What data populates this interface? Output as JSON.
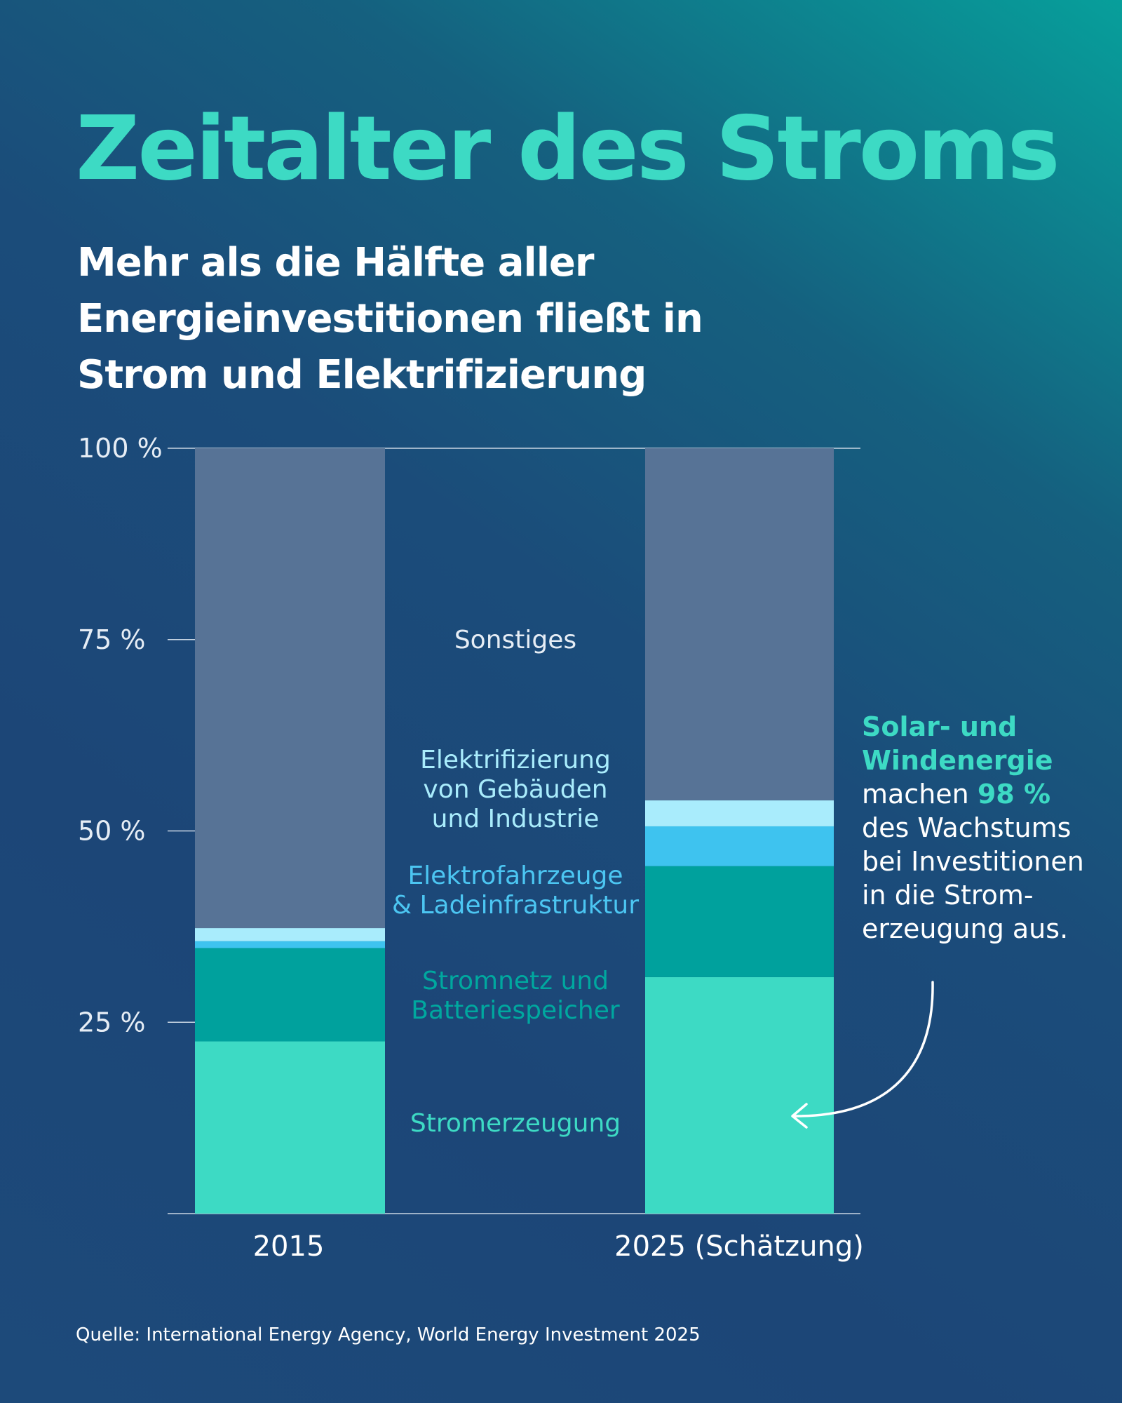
{
  "title": "Zeitalter des Stroms",
  "subtitle": [
    "Mehr als die Hälfte aller",
    "Energieinvestitionen fließt in",
    "Strom und Elektrifizierung"
  ],
  "annotation": {
    "highlight_lines": [
      "Solar- und",
      "Windenergie"
    ],
    "line3_prefix": "machen ",
    "line3_value": "98 %",
    "lines": [
      "des Wachstums",
      "bei Investitionen",
      "in die Strom-",
      "erzeugung aus."
    ]
  },
  "source": "Quelle: International Energy Agency, World Energy Investment 2025",
  "colors": {
    "background": "#1c4677",
    "accent": "#3ddac4"
  },
  "chart_data": {
    "type": "bar",
    "stacked": true,
    "categories": [
      "2015",
      "2025 (Schätzung)"
    ],
    "ylim": [
      0,
      100
    ],
    "yticks": [
      "25 %",
      "50 %",
      "75 %",
      "100 %"
    ],
    "ytick_values": [
      25,
      50,
      75,
      100
    ],
    "grid": false,
    "legend": "center labels between bars",
    "series": [
      {
        "name": "Stromerzeugung",
        "values": [
          22.5,
          30.9
        ],
        "color": "#3ddac4",
        "label_lines": [
          "Stromerzeugung"
        ]
      },
      {
        "name": "Stromnetz und Batteriespeicher",
        "values": [
          12.2,
          14.5
        ],
        "color": "#00a19d",
        "label_lines": [
          "Stromnetz und",
          "Batteriespeicher"
        ]
      },
      {
        "name": "Elektrofahrzeuge & Ladeinfrastruktur",
        "values": [
          0.9,
          5.2
        ],
        "color": "#3ec3ef",
        "label_lines": [
          "Elektrofahrzeuge",
          "& Ladeinfrastruktur"
        ]
      },
      {
        "name": "Elektrifizierung von Gebäuden und Industrie",
        "values": [
          1.7,
          3.4
        ],
        "color": "#a9ecfc",
        "label_lines": [
          "Elektrifizierung",
          "von Gebäuden",
          "und Industrie"
        ]
      },
      {
        "name": "Sonstiges",
        "values": [
          62.7,
          46.0
        ],
        "color": "#577396",
        "label_lines": [
          "Sonstiges"
        ]
      }
    ]
  }
}
